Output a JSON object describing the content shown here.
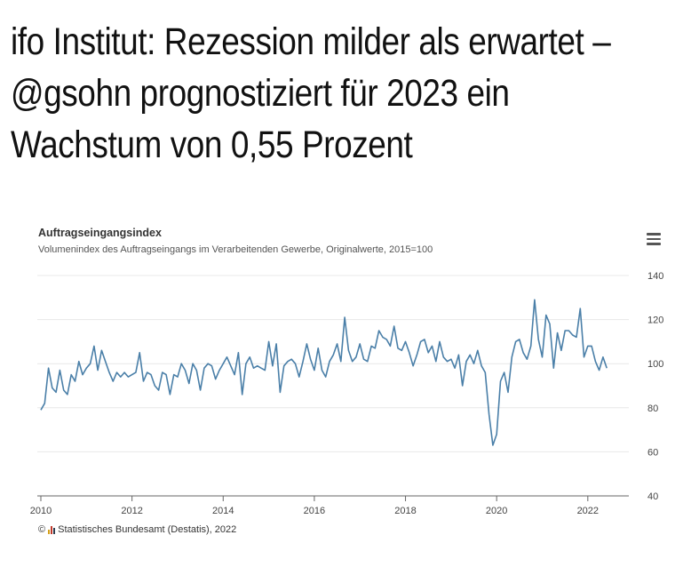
{
  "headline": {
    "lines": [
      "ifo Institut: Rezession milder als erwartet –",
      "@gsohn prognostiziert für 2023 ein",
      "Wachstum von 0,55 Prozent"
    ]
  },
  "chart": {
    "menu_icon": "hamburger-menu-icon",
    "copyright_symbol": "©",
    "source_logo": "destatis-logo-icon",
    "source": "Statistisches Bundesamt (Destatis), 2022",
    "colors": {
      "line": "#4a7fa8",
      "grid": "#e8e8e8",
      "axis": "#666666"
    }
  },
  "chart_data": {
    "type": "line",
    "title": "Auftragseingangsindex",
    "subtitle": "Volumenindex des Auftragseingangs im Verarbeitenden Gewerbe, Originalwerte, 2015=100",
    "xlabel": "",
    "ylabel": "",
    "xlim": [
      2010,
      2022.9
    ],
    "ylim": [
      40,
      140
    ],
    "x_ticks": [
      "2010",
      "2012",
      "2014",
      "2016",
      "2018",
      "2020",
      "2022"
    ],
    "y_ticks": [
      "40",
      "60",
      "80",
      "100",
      "120",
      "140"
    ],
    "y_axis_position": "right",
    "grid": true,
    "x_start": "2010-01",
    "frequency": "monthly",
    "series": [
      {
        "values": [
          79,
          82,
          98,
          89,
          87,
          97,
          88,
          86,
          95,
          92,
          101,
          95,
          98,
          100,
          108,
          97,
          106,
          101,
          96,
          92,
          96,
          94,
          96,
          94,
          95,
          96,
          105,
          92,
          96,
          95,
          90,
          88,
          96,
          95,
          86,
          95,
          94,
          100,
          97,
          91,
          100,
          97,
          88,
          98,
          100,
          99,
          93,
          97,
          100,
          103,
          99,
          95,
          105,
          86,
          100,
          103,
          98,
          99,
          98,
          97,
          110,
          99,
          109,
          87,
          99,
          101,
          102,
          100,
          94,
          101,
          109,
          102,
          97,
          107,
          97,
          94,
          101,
          104,
          109,
          101,
          121,
          106,
          101,
          103,
          109,
          102,
          101,
          108,
          107,
          115,
          112,
          111,
          108,
          117,
          107,
          106,
          110,
          105,
          99,
          104,
          110,
          111,
          105,
          108,
          101,
          110,
          103,
          101,
          102,
          98,
          104,
          90,
          101,
          104,
          100,
          106,
          99,
          96,
          77,
          63,
          68,
          92,
          96,
          87,
          103,
          110,
          111,
          105,
          102,
          108,
          129,
          111,
          103,
          122,
          118,
          98,
          114,
          106,
          115,
          115,
          113,
          112,
          125,
          103,
          108,
          108,
          101,
          97,
          103,
          98
        ]
      }
    ]
  }
}
